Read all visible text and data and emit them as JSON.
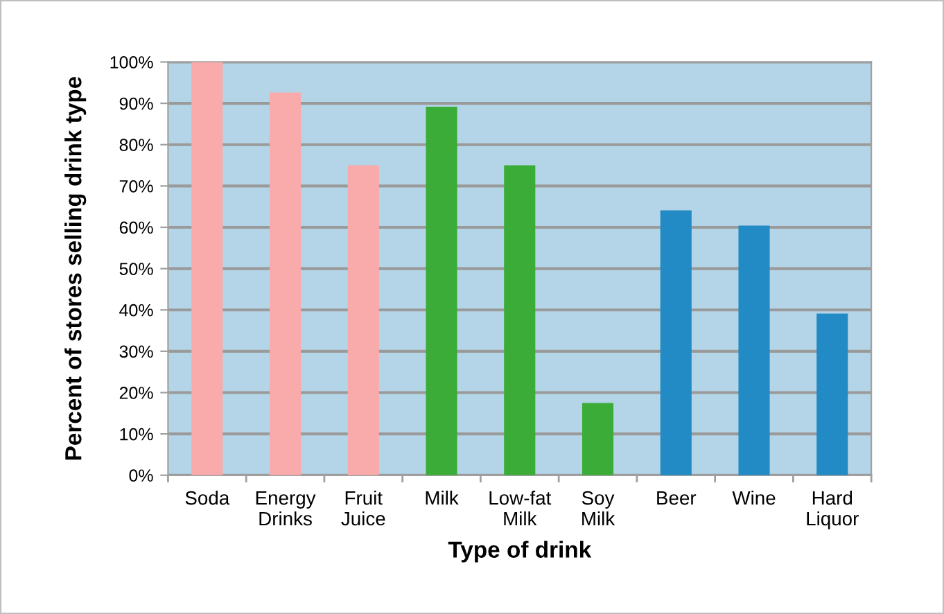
{
  "chart_data": {
    "type": "bar",
    "xlabel": "Type of drink",
    "ylabel": "Percent of stores selling drink type",
    "categories": [
      "Soda",
      "Energy\nDrinks",
      "Fruit\nJuice",
      "Milk",
      "Low-fat\nMilk",
      "Soy\nMilk",
      "Beer",
      "Wine",
      "Hard\nLiquor"
    ],
    "values": [
      100,
      92.6,
      75,
      89.2,
      75,
      17.5,
      64.1,
      60.4,
      39.1
    ],
    "colors": [
      "#f9aaaa",
      "#f9aaaa",
      "#f9aaaa",
      "#3aac37",
      "#3aac37",
      "#3aac37",
      "#228ac4",
      "#228ac4",
      "#228ac4"
    ],
    "ylim": [
      0,
      100
    ],
    "yticks": [
      {
        "value": 0,
        "label": "0%"
      },
      {
        "value": 10,
        "label": "10%"
      },
      {
        "value": 20,
        "label": "20%"
      },
      {
        "value": 30,
        "label": "30%"
      },
      {
        "value": 40,
        "label": "40%"
      },
      {
        "value": 50,
        "label": "50%"
      },
      {
        "value": 60,
        "label": "60%"
      },
      {
        "value": 70,
        "label": "70%"
      },
      {
        "value": 80,
        "label": "80%"
      },
      {
        "value": 90,
        "label": "90%"
      },
      {
        "value": 100,
        "label": "100%"
      }
    ],
    "grid": "y",
    "legend": false
  }
}
